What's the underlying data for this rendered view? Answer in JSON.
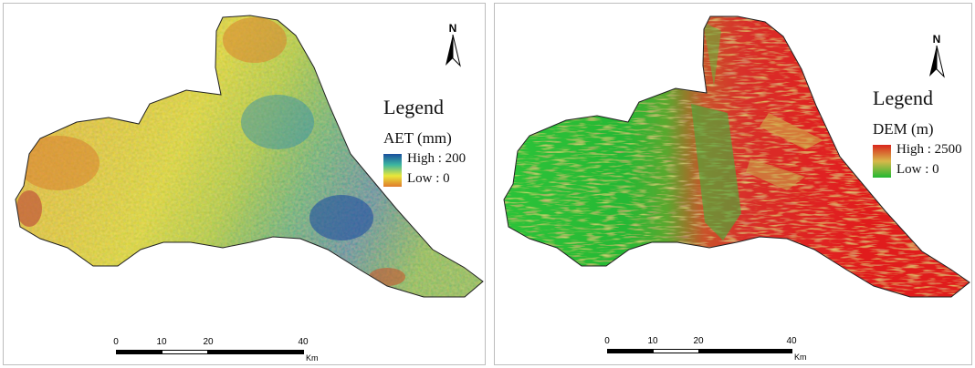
{
  "panels": [
    {
      "id": "aet",
      "north_label": "N",
      "legend": {
        "title": "Legend",
        "layer": "AET (mm)",
        "high_label": "High : 200",
        "low_label": "Low : 0",
        "colors": [
          "#1a4f9e",
          "#3cb6a0",
          "#e9e83a",
          "#e07a2c"
        ]
      },
      "scale": {
        "ticks": [
          "0",
          "10",
          "20",
          "40"
        ],
        "unit": "Km"
      }
    },
    {
      "id": "dem",
      "north_label": "N",
      "legend": {
        "title": "Legend",
        "layer": "DEM (m)",
        "high_label": "High : 2500",
        "low_label": "Low : 0",
        "colors": [
          "#d9261c",
          "#d8b84a",
          "#22b832"
        ]
      },
      "scale": {
        "ticks": [
          "0",
          "10",
          "20",
          "40"
        ],
        "unit": "Km"
      }
    }
  ]
}
